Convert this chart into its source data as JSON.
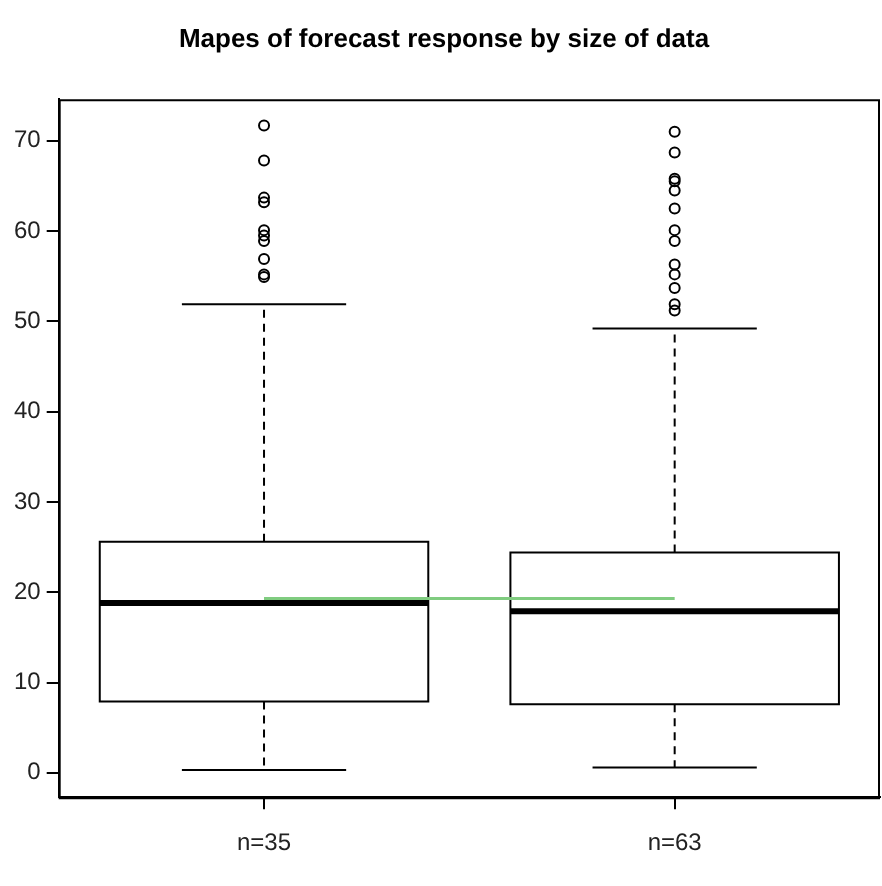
{
  "chart_data": {
    "type": "box",
    "title": "Mapes of forecast response by size of data",
    "categories": [
      "n=35",
      "n=63"
    ],
    "boxes": [
      {
        "low": 0.3,
        "q1": 7.9,
        "median": 18.8,
        "q3": 25.6,
        "high": 51.9,
        "outliers": [
          71.7,
          67.8,
          63.7,
          63.2,
          60.1,
          59.5,
          58.9,
          56.9,
          55.2,
          54.9
        ]
      },
      {
        "low": 0.6,
        "q1": 7.6,
        "median": 17.9,
        "q3": 24.4,
        "high": 49.2,
        "outliers": [
          71.0,
          68.7,
          65.8,
          65.5,
          64.5,
          62.5,
          60.1,
          58.9,
          56.3,
          55.2,
          53.7,
          51.9,
          51.2
        ]
      }
    ],
    "series": [
      {
        "type": "line",
        "color": "#80cc80",
        "values": [
          19.3,
          19.3
        ]
      }
    ],
    "ylim": [
      -2.7,
      74.6
    ],
    "yticks": [
      0,
      10,
      20,
      30,
      40,
      50,
      60,
      70
    ],
    "grid": false,
    "legend": false,
    "marker": "none",
    "line_style": "solid"
  }
}
